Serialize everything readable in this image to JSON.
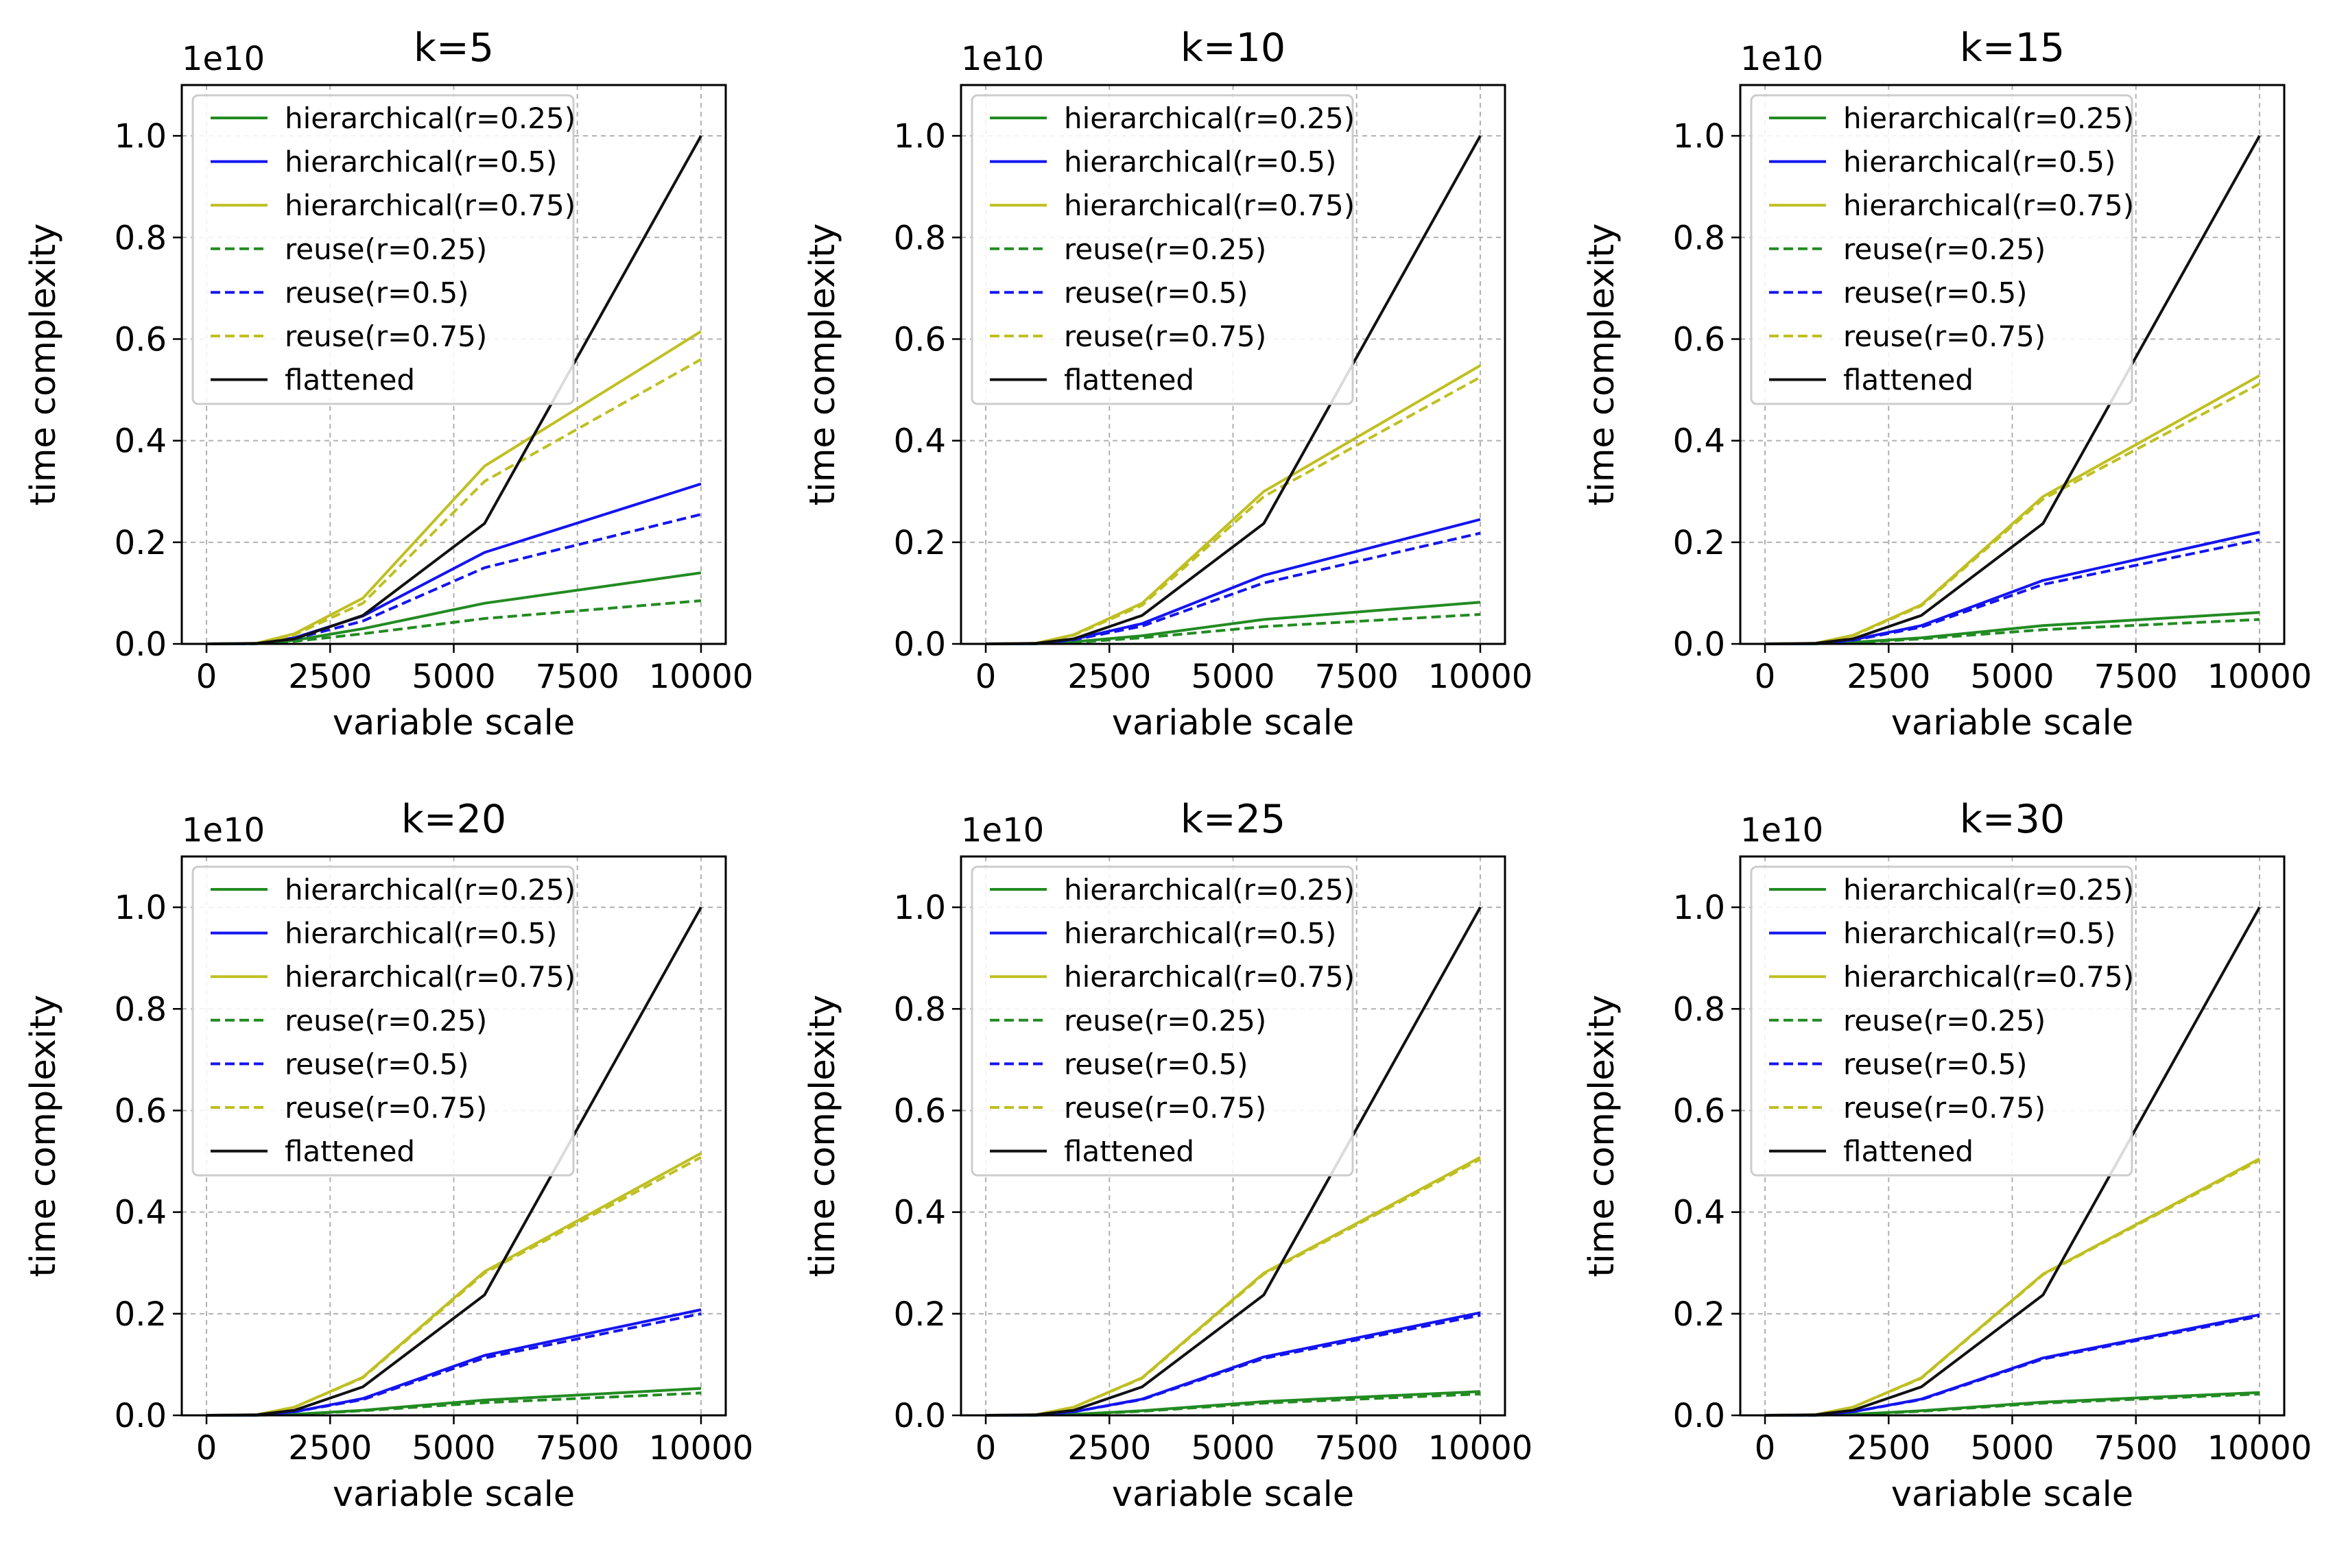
{
  "figure": {
    "x_label": "variable scale",
    "y_label": "time complexity",
    "y_offset_text": "1e10"
  },
  "legend_entries": [
    {
      "key": "h25",
      "label": "hierarchical(r=0.25)",
      "color": "#228b22",
      "style": "solid"
    },
    {
      "key": "h50",
      "label": "hierarchical(r=0.5)",
      "color": "#1414f0",
      "style": "solid"
    },
    {
      "key": "h75",
      "label": "hierarchical(r=0.75)",
      "color": "#bfbf22",
      "style": "solid"
    },
    {
      "key": "r25",
      "label": "reuse(r=0.25)",
      "color": "#228b22",
      "style": "dashed"
    },
    {
      "key": "r50",
      "label": "reuse(r=0.5)",
      "color": "#1414f0",
      "style": "dashed"
    },
    {
      "key": "r75",
      "label": "reuse(r=0.75)",
      "color": "#bfbf22",
      "style": "dashed"
    },
    {
      "key": "flat",
      "label": "flattened",
      "color": "#111111",
      "style": "solid"
    }
  ],
  "chart_data": [
    {
      "type": "line",
      "title": "k=5",
      "xlabel": "variable scale",
      "ylabel": "time complexity",
      "x": [
        0,
        1000,
        1778,
        3162,
        5623,
        10000
      ],
      "xlim": [
        -500,
        10500
      ],
      "ylim": [
        0,
        1.1
      ],
      "xticks": [
        0,
        2500,
        5000,
        7500,
        10000
      ],
      "yticks": [
        0.0,
        0.2,
        0.4,
        0.6,
        0.8,
        1.0
      ],
      "xtick_labels": [
        "0",
        "2500",
        "5000",
        "7500",
        "10000"
      ],
      "ytick_labels": [
        "0.0",
        "0.2",
        "0.4",
        "0.6",
        "0.8",
        "1.0"
      ],
      "y_multiplier": "1e10",
      "grid": true,
      "legend_loc": "upper-left",
      "series": [
        {
          "key": "h25",
          "name": "hierarchical(r=0.25)",
          "values": [
            0,
            0.0004,
            0.007,
            0.03,
            0.08,
            0.14
          ]
        },
        {
          "key": "h50",
          "name": "hierarchical(r=0.5)",
          "values": [
            0,
            0.0007,
            0.012,
            0.055,
            0.18,
            0.315
          ]
        },
        {
          "key": "h75",
          "name": "hierarchical(r=0.75)",
          "values": [
            0,
            0.001,
            0.02,
            0.09,
            0.35,
            0.615
          ]
        },
        {
          "key": "r25",
          "name": "reuse(r=0.25)",
          "values": [
            0,
            0.0003,
            0.005,
            0.02,
            0.05,
            0.085
          ]
        },
        {
          "key": "r50",
          "name": "reuse(r=0.5)",
          "values": [
            0,
            0.0006,
            0.01,
            0.045,
            0.15,
            0.255
          ]
        },
        {
          "key": "r75",
          "name": "reuse(r=0.75)",
          "values": [
            0,
            0.0009,
            0.018,
            0.08,
            0.32,
            0.56
          ]
        },
        {
          "key": "flat",
          "name": "flattened",
          "values": [
            0,
            0.001,
            0.01,
            0.056,
            0.237,
            1.0
          ]
        }
      ]
    },
    {
      "type": "line",
      "title": "k=10",
      "xlabel": "variable scale",
      "ylabel": "time complexity",
      "x": [
        0,
        1000,
        1778,
        3162,
        5623,
        10000
      ],
      "xlim": [
        -500,
        10500
      ],
      "ylim": [
        0,
        1.1
      ],
      "xticks": [
        0,
        2500,
        5000,
        7500,
        10000
      ],
      "yticks": [
        0.0,
        0.2,
        0.4,
        0.6,
        0.8,
        1.0
      ],
      "xtick_labels": [
        "0",
        "2500",
        "5000",
        "7500",
        "10000"
      ],
      "ytick_labels": [
        "0.0",
        "0.2",
        "0.4",
        "0.6",
        "0.8",
        "1.0"
      ],
      "y_multiplier": "1e10",
      "grid": true,
      "legend_loc": "upper-left",
      "series": [
        {
          "key": "h25",
          "name": "hierarchical(r=0.25)",
          "values": [
            0,
            0.0003,
            0.004,
            0.016,
            0.048,
            0.082
          ]
        },
        {
          "key": "h50",
          "name": "hierarchical(r=0.5)",
          "values": [
            0,
            0.0006,
            0.009,
            0.04,
            0.135,
            0.245
          ]
        },
        {
          "key": "h75",
          "name": "hierarchical(r=0.75)",
          "values": [
            0,
            0.001,
            0.018,
            0.08,
            0.3,
            0.548
          ]
        },
        {
          "key": "r25",
          "name": "reuse(r=0.25)",
          "values": [
            0,
            0.0002,
            0.003,
            0.012,
            0.034,
            0.058
          ]
        },
        {
          "key": "r50",
          "name": "reuse(r=0.5)",
          "values": [
            0,
            0.0005,
            0.008,
            0.035,
            0.12,
            0.218
          ]
        },
        {
          "key": "r75",
          "name": "reuse(r=0.75)",
          "values": [
            0,
            0.0009,
            0.017,
            0.076,
            0.29,
            0.525
          ]
        },
        {
          "key": "flat",
          "name": "flattened",
          "values": [
            0,
            0.001,
            0.01,
            0.056,
            0.237,
            1.0
          ]
        }
      ]
    },
    {
      "type": "line",
      "title": "k=15",
      "xlabel": "variable scale",
      "ylabel": "time complexity",
      "x": [
        0,
        1000,
        1778,
        3162,
        5623,
        10000
      ],
      "xlim": [
        -500,
        10500
      ],
      "ylim": [
        0,
        1.1
      ],
      "xticks": [
        0,
        2500,
        5000,
        7500,
        10000
      ],
      "yticks": [
        0.0,
        0.2,
        0.4,
        0.6,
        0.8,
        1.0
      ],
      "xtick_labels": [
        "0",
        "2500",
        "5000",
        "7500",
        "10000"
      ],
      "ytick_labels": [
        "0.0",
        "0.2",
        "0.4",
        "0.6",
        "0.8",
        "1.0"
      ],
      "y_multiplier": "1e10",
      "grid": true,
      "legend_loc": "upper-left",
      "series": [
        {
          "key": "h25",
          "name": "hierarchical(r=0.25)",
          "values": [
            0,
            0.0002,
            0.003,
            0.012,
            0.036,
            0.062
          ]
        },
        {
          "key": "h50",
          "name": "hierarchical(r=0.5)",
          "values": [
            0,
            0.0005,
            0.008,
            0.036,
            0.125,
            0.22
          ]
        },
        {
          "key": "h75",
          "name": "hierarchical(r=0.75)",
          "values": [
            0,
            0.001,
            0.017,
            0.077,
            0.29,
            0.528
          ]
        },
        {
          "key": "r25",
          "name": "reuse(r=0.25)",
          "values": [
            0,
            0.0002,
            0.002,
            0.01,
            0.028,
            0.048
          ]
        },
        {
          "key": "r50",
          "name": "reuse(r=0.5)",
          "values": [
            0,
            0.0005,
            0.007,
            0.033,
            0.117,
            0.205
          ]
        },
        {
          "key": "r75",
          "name": "reuse(r=0.75)",
          "values": [
            0,
            0.0009,
            0.016,
            0.075,
            0.285,
            0.512
          ]
        },
        {
          "key": "flat",
          "name": "flattened",
          "values": [
            0,
            0.001,
            0.01,
            0.056,
            0.237,
            1.0
          ]
        }
      ]
    },
    {
      "type": "line",
      "title": "k=20",
      "xlabel": "variable scale",
      "ylabel": "time complexity",
      "x": [
        0,
        1000,
        1778,
        3162,
        5623,
        10000
      ],
      "xlim": [
        -500,
        10500
      ],
      "ylim": [
        0,
        1.1
      ],
      "xticks": [
        0,
        2500,
        5000,
        7500,
        10000
      ],
      "yticks": [
        0.0,
        0.2,
        0.4,
        0.6,
        0.8,
        1.0
      ],
      "xtick_labels": [
        "0",
        "2500",
        "5000",
        "7500",
        "10000"
      ],
      "ytick_labels": [
        "0.0",
        "0.2",
        "0.4",
        "0.6",
        "0.8",
        "1.0"
      ],
      "y_multiplier": "1e10",
      "grid": true,
      "legend_loc": "upper-left",
      "series": [
        {
          "key": "h25",
          "name": "hierarchical(r=0.25)",
          "values": [
            0,
            0.0002,
            0.002,
            0.01,
            0.03,
            0.053
          ]
        },
        {
          "key": "h50",
          "name": "hierarchical(r=0.5)",
          "values": [
            0,
            0.0005,
            0.007,
            0.033,
            0.118,
            0.208
          ]
        },
        {
          "key": "h75",
          "name": "hierarchical(r=0.75)",
          "values": [
            0,
            0.001,
            0.016,
            0.075,
            0.283,
            0.516
          ]
        },
        {
          "key": "r25",
          "name": "reuse(r=0.25)",
          "values": [
            0,
            0.0002,
            0.002,
            0.009,
            0.025,
            0.044
          ]
        },
        {
          "key": "r50",
          "name": "reuse(r=0.5)",
          "values": [
            0,
            0.0004,
            0.007,
            0.031,
            0.113,
            0.2
          ]
        },
        {
          "key": "r75",
          "name": "reuse(r=0.75)",
          "values": [
            0,
            0.0009,
            0.016,
            0.074,
            0.28,
            0.508
          ]
        },
        {
          "key": "flat",
          "name": "flattened",
          "values": [
            0,
            0.001,
            0.01,
            0.056,
            0.237,
            1.0
          ]
        }
      ]
    },
    {
      "type": "line",
      "title": "k=25",
      "xlabel": "variable scale",
      "ylabel": "time complexity",
      "x": [
        0,
        1000,
        1778,
        3162,
        5623,
        10000
      ],
      "xlim": [
        -500,
        10500
      ],
      "ylim": [
        0,
        1.1
      ],
      "xticks": [
        0,
        2500,
        5000,
        7500,
        10000
      ],
      "yticks": [
        0.0,
        0.2,
        0.4,
        0.6,
        0.8,
        1.0
      ],
      "xtick_labels": [
        "0",
        "2500",
        "5000",
        "7500",
        "10000"
      ],
      "ytick_labels": [
        "0.0",
        "0.2",
        "0.4",
        "0.6",
        "0.8",
        "1.0"
      ],
      "y_multiplier": "1e10",
      "grid": true,
      "legend_loc": "upper-left",
      "series": [
        {
          "key": "h25",
          "name": "hierarchical(r=0.25)",
          "values": [
            0,
            0.0002,
            0.002,
            0.009,
            0.027,
            0.047
          ]
        },
        {
          "key": "h50",
          "name": "hierarchical(r=0.5)",
          "values": [
            0,
            0.0005,
            0.007,
            0.032,
            0.115,
            0.202
          ]
        },
        {
          "key": "h75",
          "name": "hierarchical(r=0.75)",
          "values": [
            0,
            0.001,
            0.016,
            0.074,
            0.28,
            0.508
          ]
        },
        {
          "key": "r25",
          "name": "reuse(r=0.25)",
          "values": [
            0,
            0.0002,
            0.002,
            0.008,
            0.024,
            0.042
          ]
        },
        {
          "key": "r50",
          "name": "reuse(r=0.5)",
          "values": [
            0,
            0.0004,
            0.007,
            0.031,
            0.112,
            0.197
          ]
        },
        {
          "key": "r75",
          "name": "reuse(r=0.75)",
          "values": [
            0,
            0.0009,
            0.016,
            0.073,
            0.278,
            0.504
          ]
        },
        {
          "key": "flat",
          "name": "flattened",
          "values": [
            0,
            0.001,
            0.01,
            0.056,
            0.237,
            1.0
          ]
        }
      ]
    },
    {
      "type": "line",
      "title": "k=30",
      "xlabel": "variable scale",
      "ylabel": "time complexity",
      "x": [
        0,
        1000,
        1778,
        3162,
        5623,
        10000
      ],
      "xlim": [
        -500,
        10500
      ],
      "ylim": [
        0,
        1.1
      ],
      "xticks": [
        0,
        2500,
        5000,
        7500,
        10000
      ],
      "yticks": [
        0.0,
        0.2,
        0.4,
        0.6,
        0.8,
        1.0
      ],
      "xtick_labels": [
        "0",
        "2500",
        "5000",
        "7500",
        "10000"
      ],
      "ytick_labels": [
        "0.0",
        "0.2",
        "0.4",
        "0.6",
        "0.8",
        "1.0"
      ],
      "y_multiplier": "1e10",
      "grid": true,
      "legend_loc": "upper-left",
      "series": [
        {
          "key": "h25",
          "name": "hierarchical(r=0.25)",
          "values": [
            0,
            0.0002,
            0.002,
            0.009,
            0.026,
            0.045
          ]
        },
        {
          "key": "h50",
          "name": "hierarchical(r=0.5)",
          "values": [
            0,
            0.0005,
            0.007,
            0.032,
            0.113,
            0.198
          ]
        },
        {
          "key": "h75",
          "name": "hierarchical(r=0.75)",
          "values": [
            0,
            0.001,
            0.016,
            0.074,
            0.278,
            0.505
          ]
        },
        {
          "key": "r25",
          "name": "reuse(r=0.25)",
          "values": [
            0,
            0.0002,
            0.002,
            0.008,
            0.024,
            0.042
          ]
        },
        {
          "key": "r50",
          "name": "reuse(r=0.5)",
          "values": [
            0,
            0.0004,
            0.007,
            0.031,
            0.111,
            0.195
          ]
        },
        {
          "key": "r75",
          "name": "reuse(r=0.75)",
          "values": [
            0,
            0.0009,
            0.016,
            0.073,
            0.277,
            0.502
          ]
        },
        {
          "key": "flat",
          "name": "flattened",
          "values": [
            0,
            0.001,
            0.01,
            0.056,
            0.237,
            1.0
          ]
        }
      ]
    }
  ]
}
